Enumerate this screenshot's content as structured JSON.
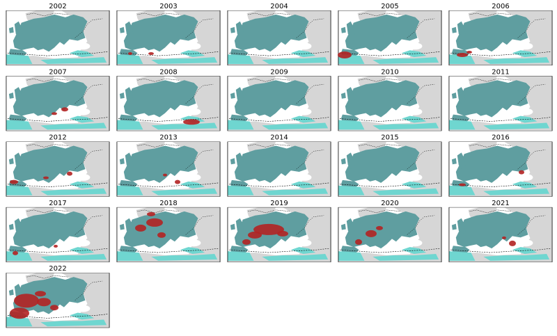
{
  "panels": [
    {
      "title": "2002"
    },
    {
      "title": "2003"
    },
    {
      "title": "2004"
    },
    {
      "title": "2005"
    },
    {
      "title": "2006"
    },
    {
      "title": "2007"
    },
    {
      "title": "2008"
    },
    {
      "title": "2009"
    },
    {
      "title": "2010"
    },
    {
      "title": "2011"
    },
    {
      "title": "2012"
    },
    {
      "title": "2013"
    },
    {
      "title": "2014"
    },
    {
      "title": "2015"
    },
    {
      "title": "2016"
    },
    {
      "title": "2017"
    },
    {
      "title": "2018"
    },
    {
      "title": "2019"
    },
    {
      "title": "2020"
    },
    {
      "title": "2021"
    },
    {
      "title": "2022"
    }
  ]
}
